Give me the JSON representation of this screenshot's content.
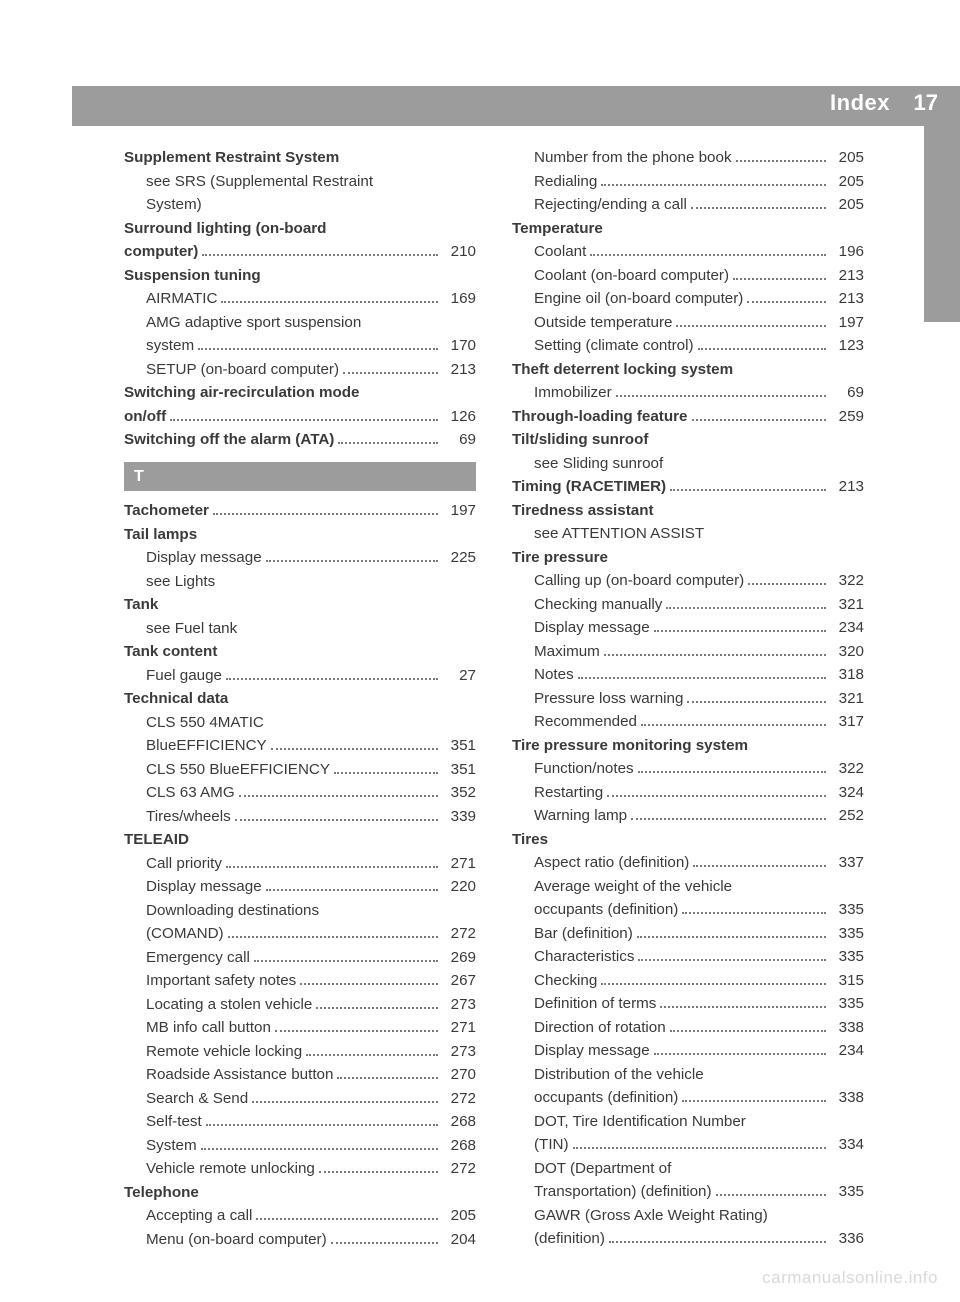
{
  "header": {
    "title": "Index",
    "page": "17"
  },
  "watermark": "carmanualsonline.info",
  "section_letter": "T",
  "colors": {
    "bar": "#9c9c9c",
    "text": "#3a3a3a",
    "wm": "#d9d9d9"
  },
  "left": [
    {
      "label": "Supplement Restraint System",
      "bold": true
    },
    {
      "label": "see SRS (Supplemental Restraint",
      "sub": true
    },
    {
      "label": "System)",
      "sub": true
    },
    {
      "label": "Surround lighting (on-board",
      "bold": true
    },
    {
      "label": "computer)",
      "bold": true,
      "page": "210"
    },
    {
      "label": "Suspension tuning",
      "bold": true
    },
    {
      "label": "AIRMATIC",
      "sub": true,
      "page": "169"
    },
    {
      "label": "AMG adaptive sport suspension",
      "sub": true
    },
    {
      "label": "system",
      "sub": true,
      "page": "170"
    },
    {
      "label": "SETUP (on-board computer)",
      "sub": true,
      "page": "213"
    },
    {
      "label": "Switching air-recirculation mode",
      "bold": true
    },
    {
      "label": "on/off",
      "bold": true,
      "page": "126"
    },
    {
      "label": "Switching off the alarm (ATA)",
      "bold": true,
      "page": "69"
    },
    {
      "section": "T"
    },
    {
      "label": "Tachometer",
      "bold": true,
      "page": "197"
    },
    {
      "label": "Tail lamps",
      "bold": true
    },
    {
      "label": "Display message",
      "sub": true,
      "page": "225"
    },
    {
      "label": "see Lights",
      "sub": true
    },
    {
      "label": "Tank",
      "bold": true
    },
    {
      "label": "see Fuel tank",
      "sub": true
    },
    {
      "label": "Tank content",
      "bold": true
    },
    {
      "label": "Fuel gauge",
      "sub": true,
      "page": "27"
    },
    {
      "label": "Technical data",
      "bold": true
    },
    {
      "label": "CLS 550 4MATIC",
      "sub": true
    },
    {
      "label": "BlueEFFICIENCY",
      "sub": true,
      "page": "351"
    },
    {
      "label": "CLS 550 BlueEFFICIENCY",
      "sub": true,
      "page": "351"
    },
    {
      "label": "CLS 63 AMG",
      "sub": true,
      "page": "352"
    },
    {
      "label": "Tires/wheels",
      "sub": true,
      "page": "339"
    },
    {
      "label": "TELEAID",
      "bold": true
    },
    {
      "label": "Call priority",
      "sub": true,
      "page": "271"
    },
    {
      "label": "Display message",
      "sub": true,
      "page": "220"
    },
    {
      "label": "Downloading destinations",
      "sub": true
    },
    {
      "label": "(COMAND)",
      "sub": true,
      "page": "272"
    },
    {
      "label": "Emergency call",
      "sub": true,
      "page": "269"
    },
    {
      "label": "Important safety notes",
      "sub": true,
      "page": "267"
    },
    {
      "label": "Locating a stolen vehicle",
      "sub": true,
      "page": "273"
    },
    {
      "label": "MB info call button",
      "sub": true,
      "page": "271"
    },
    {
      "label": "Remote vehicle locking",
      "sub": true,
      "page": "273"
    },
    {
      "label": "Roadside Assistance button",
      "sub": true,
      "page": "270"
    },
    {
      "label": "Search & Send",
      "sub": true,
      "page": "272"
    },
    {
      "label": "Self-test",
      "sub": true,
      "page": "268"
    },
    {
      "label": "System",
      "sub": true,
      "page": "268"
    },
    {
      "label": "Vehicle remote unlocking",
      "sub": true,
      "page": "272"
    },
    {
      "label": "Telephone",
      "bold": true
    },
    {
      "label": "Accepting a call",
      "sub": true,
      "page": "205"
    },
    {
      "label": "Menu (on-board computer)",
      "sub": true,
      "page": "204"
    }
  ],
  "right": [
    {
      "label": "Number from the phone book",
      "sub": true,
      "page": "205"
    },
    {
      "label": "Redialing",
      "sub": true,
      "page": "205"
    },
    {
      "label": "Rejecting/ending a call",
      "sub": true,
      "page": "205"
    },
    {
      "label": "Temperature",
      "bold": true
    },
    {
      "label": "Coolant",
      "sub": true,
      "page": "196"
    },
    {
      "label": "Coolant (on-board computer)",
      "sub": true,
      "page": "213"
    },
    {
      "label": "Engine oil (on-board computer)",
      "sub": true,
      "page": "213"
    },
    {
      "label": "Outside temperature",
      "sub": true,
      "page": "197"
    },
    {
      "label": "Setting (climate control)",
      "sub": true,
      "page": "123"
    },
    {
      "label": "Theft deterrent locking system",
      "bold": true
    },
    {
      "label": "Immobilizer",
      "sub": true,
      "page": "69"
    },
    {
      "label": "Through-loading feature",
      "bold": true,
      "page": "259"
    },
    {
      "label": "Tilt/sliding sunroof",
      "bold": true
    },
    {
      "label": "see Sliding sunroof",
      "sub": true
    },
    {
      "label": "Timing (RACETIMER)",
      "bold": true,
      "page": "213"
    },
    {
      "label": "Tiredness assistant",
      "bold": true
    },
    {
      "label": "see ATTENTION ASSIST",
      "sub": true
    },
    {
      "label": "Tire pressure",
      "bold": true
    },
    {
      "label": "Calling up (on-board computer)",
      "sub": true,
      "page": "322"
    },
    {
      "label": "Checking manually",
      "sub": true,
      "page": "321"
    },
    {
      "label": "Display message",
      "sub": true,
      "page": "234"
    },
    {
      "label": "Maximum",
      "sub": true,
      "page": "320"
    },
    {
      "label": "Notes",
      "sub": true,
      "page": "318"
    },
    {
      "label": "Pressure loss warning",
      "sub": true,
      "page": "321"
    },
    {
      "label": "Recommended",
      "sub": true,
      "page": "317"
    },
    {
      "label": "Tire pressure monitoring system",
      "bold": true
    },
    {
      "label": "Function/notes",
      "sub": true,
      "page": "322"
    },
    {
      "label": "Restarting",
      "sub": true,
      "page": "324"
    },
    {
      "label": "Warning lamp",
      "sub": true,
      "page": "252"
    },
    {
      "label": "Tires",
      "bold": true
    },
    {
      "label": "Aspect ratio (definition)",
      "sub": true,
      "page": "337"
    },
    {
      "label": "Average weight of the vehicle",
      "sub": true
    },
    {
      "label": "occupants (definition)",
      "sub": true,
      "page": "335"
    },
    {
      "label": "Bar (definition)",
      "sub": true,
      "page": "335"
    },
    {
      "label": "Characteristics",
      "sub": true,
      "page": "335"
    },
    {
      "label": "Checking",
      "sub": true,
      "page": "315"
    },
    {
      "label": "Definition of terms",
      "sub": true,
      "page": "335"
    },
    {
      "label": "Direction of rotation",
      "sub": true,
      "page": "338"
    },
    {
      "label": "Display message",
      "sub": true,
      "page": "234"
    },
    {
      "label": "Distribution of the vehicle",
      "sub": true
    },
    {
      "label": "occupants (definition)",
      "sub": true,
      "page": "338"
    },
    {
      "label": "DOT, Tire Identification Number",
      "sub": true
    },
    {
      "label": "(TIN)",
      "sub": true,
      "page": "334"
    },
    {
      "label": "DOT (Department of",
      "sub": true
    },
    {
      "label": "Transportation) (definition)",
      "sub": true,
      "page": "335"
    },
    {
      "label": "GAWR (Gross Axle Weight Rating)",
      "sub": true
    },
    {
      "label": "(definition)",
      "sub": true,
      "page": "336"
    }
  ]
}
